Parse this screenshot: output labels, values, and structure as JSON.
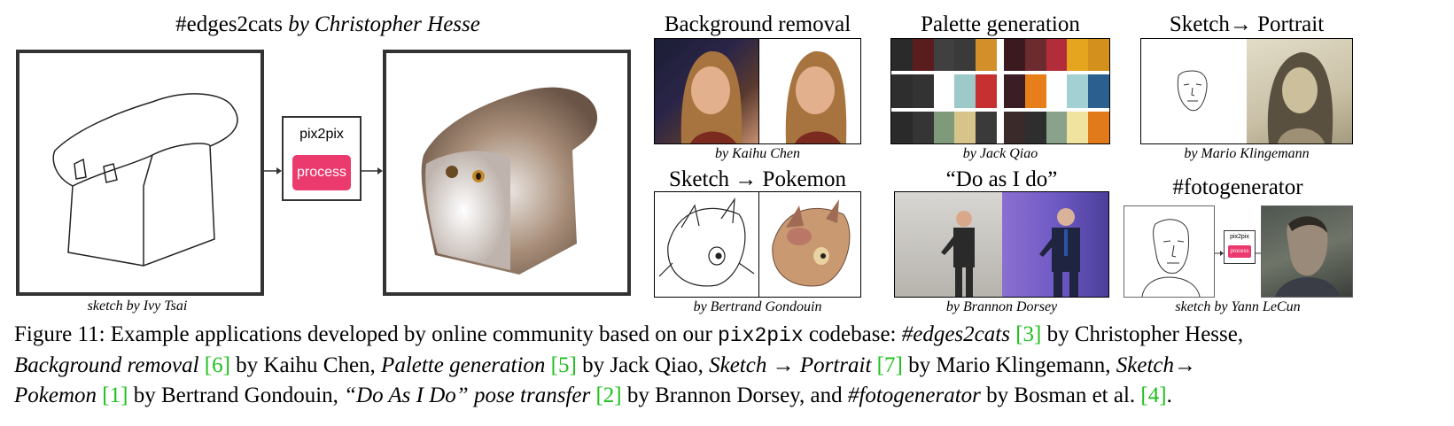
{
  "edges2cats": {
    "title_tag": "#edges2cats",
    "title_by": "by Christopher Hesse",
    "sketch_caption": "sketch by Ivy Tsai",
    "pix2pix_label": "pix2pix",
    "process_label": "process"
  },
  "panels": {
    "background_removal": {
      "title": "Background removal",
      "caption": "by Kaihu Chen"
    },
    "palette_generation": {
      "title": "Palette generation",
      "caption": "by Jack Qiao"
    },
    "sketch_portrait": {
      "title": "Sketch→ Portrait",
      "caption": "by Mario Klingemann"
    },
    "sketch_pokemon": {
      "title": "Sketch → Pokemon",
      "caption": "by Bertrand Gondouin"
    },
    "do_as_i_do": {
      "title": "“Do as I do”",
      "caption": "by Brannon Dorsey"
    },
    "fotogenerator": {
      "title": "#fotogenerator",
      "caption": "sketch by Yann LeCun",
      "pix2pix_label": "pix2pix",
      "process_label": "process"
    }
  },
  "palette_colors": {
    "row1": [
      "#2a2a2a",
      "#5a1d1d",
      "#404040",
      "#d38f2a",
      "#3a1a1f",
      "#6b2b2f",
      "#b22c3a",
      "#e6a51e",
      "#d3901c"
    ],
    "row2": [
      "#2e2e2e",
      "#ffffff",
      "#9dc9c9",
      "#3b1d26",
      "#e67e1a",
      "#a3d1d3",
      "#2a5f8f"
    ],
    "row3": [
      "#2a2a2a",
      "#7f9a7b",
      "#d6c48a",
      "#3a2a2a",
      "#8aa28a",
      "#f0e3a0",
      "#e07a1a"
    ]
  },
  "caption": {
    "s1": "Figure 11: Example applications developed by online community based on our ",
    "code": "pix2pix",
    "s2": " codebase: ",
    "i1": "#edges2cats",
    "r1": "[3]",
    "s3": " by Christopher Hesse,",
    "i2": "Background removal",
    "r2": "[6]",
    "s4": " by Kaihu Chen, ",
    "i3": "Palette generation",
    "r3": "[5]",
    "s5": " by Jack Qiao, ",
    "i4": "Sketch → Portrait",
    "r4": "[7]",
    "s6": " by Mario Klingemann, ",
    "i5": "Sketch→",
    "i5b": "Pokemon",
    "r5": "[1]",
    "s7": " by Bertrand Gondouin, ",
    "i6": "“Do As I Do” pose transfer",
    "r6": "[2]",
    "s8": " by Brannon Dorsey, and ",
    "i7": "#fotogenerator",
    "s9": " by Bosman et al. ",
    "r7": "[4]",
    "s10": "."
  }
}
